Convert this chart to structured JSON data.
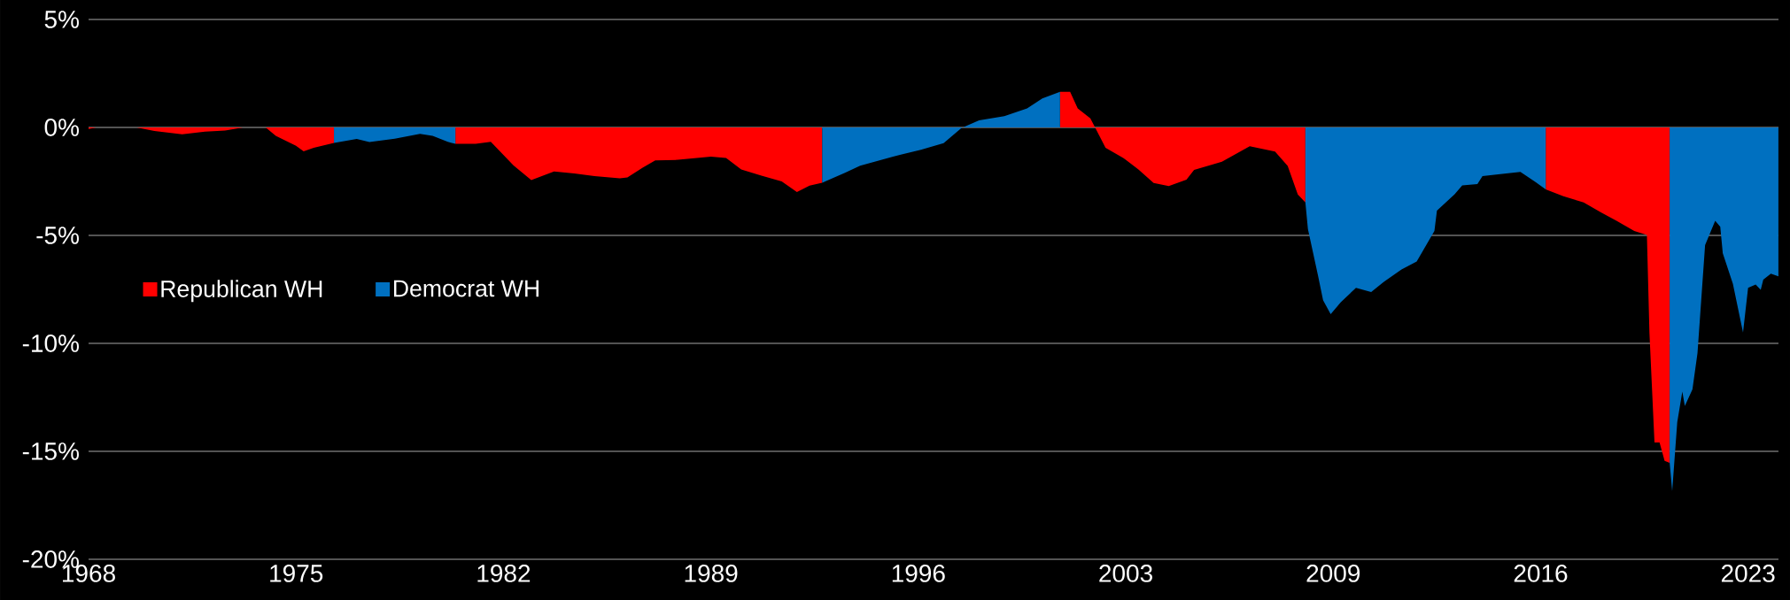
{
  "chart_data": {
    "type": "area",
    "xlim": [
      "1968-12",
      "2024-08"
    ],
    "ylim": [
      -20,
      5
    ],
    "xticks": [
      {
        "value": "1968-12",
        "label": "1968"
      },
      {
        "value": "1975-10",
        "label": "1975"
      },
      {
        "value": "1982-08",
        "label": "1982"
      },
      {
        "value": "1989-06",
        "label": "1989"
      },
      {
        "value": "1996-04",
        "label": "1996"
      },
      {
        "value": "2003-02",
        "label": "2003"
      },
      {
        "value": "2009-12",
        "label": "2009"
      },
      {
        "value": "2016-10",
        "label": "2016"
      },
      {
        "value": "2023-08",
        "label": "2023"
      }
    ],
    "yticks": [
      {
        "value": -20,
        "label": "-20%"
      },
      {
        "value": -15,
        "label": "-15%"
      },
      {
        "value": -10,
        "label": "-10%"
      },
      {
        "value": -5,
        "label": "-5%"
      },
      {
        "value": 0,
        "label": "0%"
      },
      {
        "value": 5,
        "label": "5%"
      }
    ],
    "grid": "y",
    "legend": "left",
    "series": [
      {
        "name": "Republican WH",
        "color": "#ff0000",
        "x": [
          "1968-12",
          "1969-03",
          "1970-07",
          "1971-02",
          "1972-01",
          "1972-10",
          "1973-06",
          "1974-01",
          "1974-10",
          "1975-02",
          "1975-10",
          "1976-01",
          "1976-05",
          "1977-01",
          "1979-01",
          "1981-01",
          "1981-09",
          "1982-03",
          "1982-12",
          "1983-07",
          "1984-04",
          "1984-12",
          "1985-08",
          "1986-06",
          "1986-09",
          "1987-03",
          "1987-08",
          "1988-05",
          "1989-06",
          "1989-12",
          "1990-06",
          "1991-02",
          "1991-10",
          "1992-04",
          "1992-09",
          "1993-02",
          "1997-01",
          "2000-12",
          "2001-04",
          "2001-07",
          "2001-12",
          "2002-02",
          "2002-06",
          "2003-01",
          "2003-07",
          "2004-01",
          "2004-07",
          "2005-02",
          "2005-05",
          "2006-04",
          "2007-03",
          "2008-01",
          "2008-06",
          "2008-10",
          "2009-01",
          "2013-01",
          "2016-12",
          "2017-07",
          "2018-03",
          "2018-10",
          "2019-04",
          "2019-11",
          "2020-04",
          "2020-05",
          "2020-07",
          "2020-09",
          "2020-11",
          "2021-01"
        ],
        "values": [
          -0.07,
          0,
          0,
          -0.16,
          -0.32,
          -0.19,
          -0.14,
          0,
          0,
          -0.39,
          -0.85,
          -1.11,
          -0.94,
          -0.72,
          null,
          -0.76,
          -0.76,
          -0.67,
          -1.76,
          -2.44,
          -2.04,
          -2.13,
          -2.25,
          -2.36,
          -2.32,
          -1.86,
          -1.53,
          -1.5,
          -1.35,
          -1.41,
          -1.95,
          -2.23,
          -2.5,
          -2.99,
          -2.69,
          -2.56,
          null,
          1.65,
          1.65,
          0.88,
          0.42,
          -0.03,
          -0.94,
          -1.41,
          -1.95,
          -2.57,
          -2.72,
          -2.42,
          -1.97,
          -1.59,
          -0.87,
          -1.12,
          -1.78,
          -3.1,
          -3.47,
          null,
          -2.87,
          -3.19,
          -3.47,
          -3.94,
          -4.32,
          -4.8,
          -4.98,
          -9.5,
          -14.59,
          -14.59,
          -15.44,
          -15.53
        ]
      },
      {
        "name": "Democrat WH",
        "color": "#0070c0",
        "x": [
          "1977-01",
          "1977-10",
          "1978-03",
          "1979-01",
          "1979-11",
          "1980-04",
          "1980-10",
          "1981-01",
          "1987-01",
          "1993-02",
          "1993-11",
          "1994-05",
          "1995-06",
          "1996-05",
          "1997-02",
          "1997-09",
          "1998-04",
          "1999-02",
          "1999-11",
          "2000-05",
          "2000-12",
          "2005-01",
          "2009-01",
          "2009-02",
          "2009-06",
          "2009-08",
          "2009-11",
          "2010-03",
          "2010-09",
          "2011-03",
          "2011-08",
          "2012-03",
          "2012-09",
          "2013-04",
          "2013-05",
          "2013-12",
          "2014-03",
          "2014-09",
          "2014-11",
          "2015-06",
          "2016-02",
          "2016-08",
          "2016-12",
          "2019-01",
          "2021-01",
          "2021-02",
          "2021-04",
          "2021-06",
          "2021-07",
          "2021-10",
          "2021-12",
          "2022-03",
          "2022-07",
          "2022-09",
          "2022-10",
          "2023-02",
          "2023-06",
          "2023-08",
          "2023-11",
          "2024-01",
          "2024-02",
          "2024-05",
          "2024-08"
        ],
        "values": [
          -0.72,
          -0.53,
          -0.68,
          -0.52,
          -0.3,
          -0.39,
          -0.67,
          -0.76,
          null,
          -2.56,
          -2.1,
          -1.77,
          -1.35,
          -1.04,
          -0.73,
          -0.03,
          0.33,
          0.52,
          0.88,
          1.34,
          1.65,
          null,
          -3.47,
          -4.7,
          -6.86,
          -8.0,
          -8.65,
          -8.09,
          -7.43,
          -7.62,
          -7.15,
          -6.58,
          -6.21,
          -4.8,
          -3.85,
          -3.09,
          -2.68,
          -2.62,
          -2.25,
          -2.16,
          -2.06,
          -2.53,
          -2.87,
          null,
          -15.53,
          -16.84,
          -13.65,
          -12.23,
          -12.9,
          -12.13,
          -10.45,
          -5.45,
          -4.32,
          -4.6,
          -5.83,
          -7.24,
          -9.5,
          -7.43,
          -7.28,
          -7.52,
          -7.05,
          -6.77,
          -6.9
        ]
      }
    ]
  }
}
